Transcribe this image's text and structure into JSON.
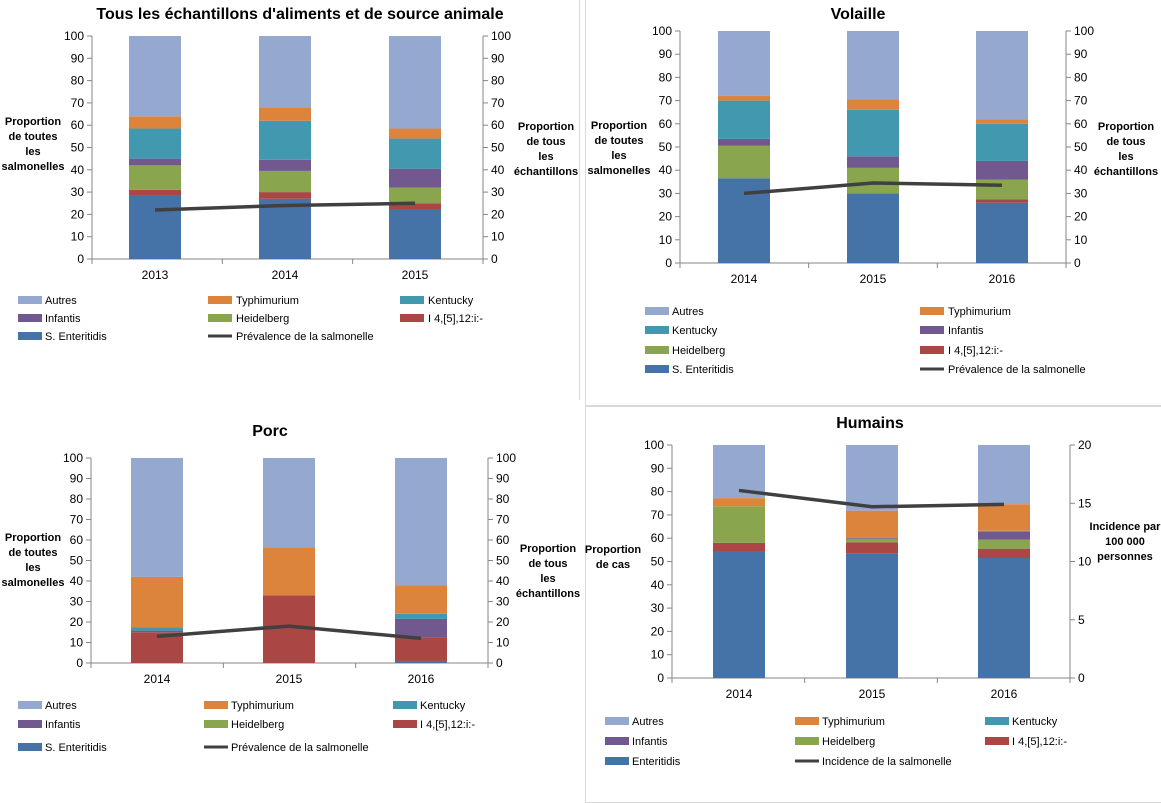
{
  "colors": {
    "Autres": "#95A9D0",
    "Typhimurium": "#DD843C",
    "Kentucky": "#4198AF",
    "Infantis": "#71588F",
    "Heidelberg": "#89A54E",
    "I 4,[5],12:i:-": "#AA4643",
    "S. Enteritidis": "#4572A7",
    "Enteritidis": "#4572A7",
    "line": "#404040"
  },
  "chart_data": [
    {
      "type": "bar",
      "stacked": true,
      "title": "Tous les échantillons d'aliments et de source animale",
      "categories": [
        "2013",
        "2014",
        "2015"
      ],
      "ylabel": [
        "Proportion",
        "de toutes",
        "les",
        "salmonelles"
      ],
      "y2label": [
        "Proportion",
        "de tous",
        "les",
        "échantillons"
      ],
      "ylim": [
        0,
        100
      ],
      "yticks": [
        0,
        10,
        20,
        30,
        40,
        50,
        60,
        70,
        80,
        90,
        100
      ],
      "y2lim": [
        0,
        100
      ],
      "y2ticks": [
        0,
        10,
        20,
        30,
        40,
        50,
        60,
        70,
        80,
        90,
        100
      ],
      "series": [
        {
          "name": "S. Enteritidis",
          "values": [
            28.5,
            27,
            22
          ]
        },
        {
          "name": "I 4,[5],12:i:-",
          "values": [
            2.5,
            3,
            3
          ]
        },
        {
          "name": "Heidelberg",
          "values": [
            11,
            9.5,
            7
          ]
        },
        {
          "name": "Infantis",
          "values": [
            3,
            5,
            8.5
          ]
        },
        {
          "name": "Kentucky",
          "values": [
            13.5,
            17.5,
            13.5
          ]
        },
        {
          "name": "Typhimurium",
          "values": [
            5.5,
            6,
            4.5
          ]
        },
        {
          "name": "Autres",
          "values": [
            36,
            32,
            41.5
          ]
        }
      ],
      "line": {
        "name": "Prévalence de la salmonelle",
        "axis": "right",
        "values": [
          22,
          24,
          25
        ]
      },
      "legend": [
        "Autres",
        "Typhimurium",
        "Kentucky",
        "Infantis",
        "Heidelberg",
        "I 4,[5],12:i:-",
        "S. Enteritidis",
        "Prévalence de la salmonelle"
      ],
      "legend_position": "bottom"
    },
    {
      "type": "bar",
      "stacked": true,
      "title": "Volaille",
      "categories": [
        "2014",
        "2015",
        "2016"
      ],
      "ylabel": [
        "Proportion",
        "de toutes",
        "les",
        "salmonelles"
      ],
      "y2label": [
        "Proportion",
        "de tous",
        "les",
        "échantillons"
      ],
      "ylim": [
        0,
        100
      ],
      "yticks": [
        0,
        10,
        20,
        30,
        40,
        50,
        60,
        70,
        80,
        90,
        100
      ],
      "y2lim": [
        0,
        100
      ],
      "y2ticks": [
        0,
        10,
        20,
        30,
        40,
        50,
        60,
        70,
        80,
        90,
        100
      ],
      "series": [
        {
          "name": "S. Enteritidis",
          "values": [
            36.5,
            30,
            26
          ]
        },
        {
          "name": "I 4,[5],12:i:-",
          "values": [
            0,
            0,
            1.5
          ]
        },
        {
          "name": "Heidelberg",
          "values": [
            14,
            11,
            8.5
          ]
        },
        {
          "name": "Infantis",
          "values": [
            3,
            5,
            8
          ]
        },
        {
          "name": "Kentucky",
          "values": [
            16.5,
            20,
            16
          ]
        },
        {
          "name": "Typhimurium",
          "values": [
            2,
            4.5,
            2
          ]
        },
        {
          "name": "Autres",
          "values": [
            28,
            29.5,
            38
          ]
        }
      ],
      "line": {
        "name": "Prévalence de la salmonelle",
        "axis": "right",
        "values": [
          30,
          34.5,
          33.5
        ]
      },
      "legend": [
        "Autres",
        "Typhimurium",
        "Kentucky",
        "Infantis",
        "Heidelberg",
        "I 4,[5],12:i:-",
        "S. Enteritidis",
        "Prévalence de la salmonelle"
      ],
      "legend_position": "bottom"
    },
    {
      "type": "bar",
      "stacked": true,
      "title": "Porc",
      "categories": [
        "2014",
        "2015",
        "2016"
      ],
      "ylabel": [
        "Proportion",
        "de toutes",
        "les",
        "salmonelles"
      ],
      "y2label": [
        "Proportion",
        "de tous",
        "les",
        "échantillons"
      ],
      "ylim": [
        0,
        100
      ],
      "yticks": [
        0,
        10,
        20,
        30,
        40,
        50,
        60,
        70,
        80,
        90,
        100
      ],
      "y2lim": [
        0,
        100
      ],
      "y2ticks": [
        0,
        10,
        20,
        30,
        40,
        50,
        60,
        70,
        80,
        90,
        100
      ],
      "series": [
        {
          "name": "S. Enteritidis",
          "values": [
            0,
            0,
            1
          ]
        },
        {
          "name": "I 4,[5],12:i:-",
          "values": [
            15,
            33,
            11.5
          ]
        },
        {
          "name": "Heidelberg",
          "values": [
            0,
            0,
            0
          ]
        },
        {
          "name": "Infantis",
          "values": [
            0.8,
            0,
            9
          ]
        },
        {
          "name": "Kentucky",
          "values": [
            1.5,
            0,
            2.5
          ]
        },
        {
          "name": "Typhimurium",
          "values": [
            24.7,
            23.5,
            14
          ]
        },
        {
          "name": "Autres",
          "values": [
            58,
            43.5,
            62
          ]
        }
      ],
      "line": {
        "name": "Prévalence de la salmonelle",
        "axis": "right",
        "values": [
          13,
          18,
          12
        ]
      },
      "legend": [
        "Autres",
        "Typhimurium",
        "Kentucky",
        "Infantis",
        "Heidelberg",
        "I 4,[5],12:i:-",
        "S. Enteritidis",
        "Prévalence de la salmonelle"
      ],
      "legend_position": "bottom"
    },
    {
      "type": "bar",
      "stacked": true,
      "title": "Humains",
      "categories": [
        "2014",
        "2015",
        "2016"
      ],
      "ylabel": [
        "Proportion",
        "de cas"
      ],
      "y2label": [
        "Incidence par",
        "100 000",
        "personnes"
      ],
      "ylim": [
        0,
        100
      ],
      "yticks": [
        0,
        10,
        20,
        30,
        40,
        50,
        60,
        70,
        80,
        90,
        100
      ],
      "y2lim": [
        0,
        20
      ],
      "y2ticks": [
        0,
        5,
        10,
        15,
        20
      ],
      "series": [
        {
          "name": "Enteritidis",
          "values": [
            54.5,
            53.5,
            51.5
          ]
        },
        {
          "name": "I 4,[5],12:i:-",
          "values": [
            3.5,
            4.7,
            4
          ]
        },
        {
          "name": "Heidelberg",
          "values": [
            15.7,
            1.6,
            3.9
          ]
        },
        {
          "name": "Infantis",
          "values": [
            0,
            0.3,
            3.3
          ]
        },
        {
          "name": "Kentucky",
          "values": [
            0,
            0,
            0.5
          ]
        },
        {
          "name": "Typhimurium",
          "values": [
            3.5,
            11.7,
            11.4
          ]
        },
        {
          "name": "Autres",
          "values": [
            22.8,
            28.2,
            25.4
          ]
        }
      ],
      "line": {
        "name": "Incidence de la salmonelle",
        "axis": "right",
        "values": [
          16.1,
          14.7,
          14.9
        ]
      },
      "legend": [
        "Autres",
        "Typhimurium",
        "Kentucky",
        "Infantis",
        "Heidelberg",
        "I 4,[5],12:i:-",
        "Enteritidis",
        "Incidence de la salmonelle"
      ],
      "legend_position": "bottom"
    }
  ]
}
